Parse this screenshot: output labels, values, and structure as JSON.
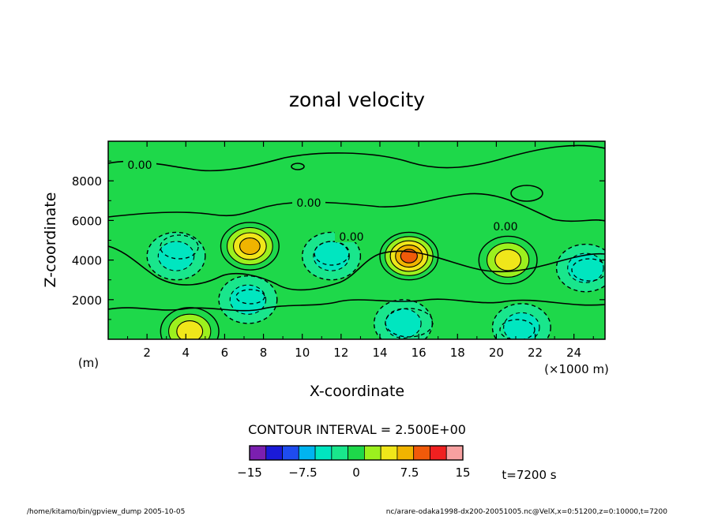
{
  "chart_data": {
    "type": "contour",
    "title": "zonal velocity",
    "xlabel": "X-coordinate",
    "ylabel": "Z-coordinate",
    "x_unit": "(m)",
    "x_scale_note": "(×1000 m)",
    "xlim": [
      0,
      25.6
    ],
    "ylim": [
      0,
      10000
    ],
    "x_ticks": [
      2,
      4,
      6,
      8,
      10,
      12,
      14,
      16,
      18,
      20,
      22,
      24
    ],
    "y_ticks": [
      2000,
      4000,
      6000,
      8000
    ],
    "zero_contour_labels": [
      "0.00",
      "0.00",
      "0.00",
      "0.00"
    ],
    "contour_interval_text": "CONTOUR INTERVAL = 2.500E+00",
    "colorbar": {
      "levels": [
        -15,
        -12.5,
        -10,
        -7.5,
        -5,
        -2.5,
        0,
        2.5,
        5,
        7.5,
        10,
        12.5,
        15
      ],
      "tick_labels": [
        "−15",
        "−7.5",
        "0",
        "7.5",
        "15"
      ],
      "colors": [
        "#7b1fb0",
        "#1a1ad8",
        "#1e4cf0",
        "#00b4f0",
        "#00e6c0",
        "#19e68c",
        "#1ed84a",
        "#9cf01e",
        "#f0e61a",
        "#f0b400",
        "#f05a0a",
        "#f02020",
        "#f7a0a0"
      ]
    },
    "background_color": "#1ed84a",
    "time_label": "t=7200 s",
    "features": [
      {
        "x": 3.5,
        "z": 4200,
        "sign": "negative",
        "peak": -5
      },
      {
        "x": 7.3,
        "z": 4700,
        "sign": "positive",
        "peak": 10
      },
      {
        "x": 11.5,
        "z": 4200,
        "sign": "negative",
        "peak": -5
      },
      {
        "x": 15.5,
        "z": 4200,
        "sign": "positive",
        "peak": 12.5
      },
      {
        "x": 20.6,
        "z": 4000,
        "sign": "positive",
        "peak": 7.5
      },
      {
        "x": 24.6,
        "z": 3600,
        "sign": "negative",
        "peak": -5
      },
      {
        "x": 7.2,
        "z": 2000,
        "sign": "negative",
        "peak": -5
      },
      {
        "x": 15.2,
        "z": 800,
        "sign": "negative",
        "peak": -5
      },
      {
        "x": 4.2,
        "z": 400,
        "sign": "positive",
        "peak": 7.5
      },
      {
        "x": 21.3,
        "z": 600,
        "sign": "negative",
        "peak": -5
      }
    ]
  },
  "footer": {
    "left": "/home/kitamo/bin/gpview_dump   2005-10-05",
    "right": "nc/arare-odaka1998-dx200-20051005.nc@VelX,x=0:51200,z=0:10000,t=7200"
  }
}
